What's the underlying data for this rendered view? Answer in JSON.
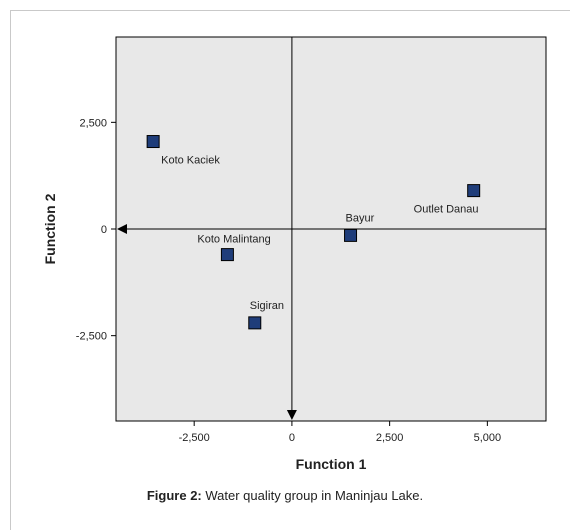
{
  "caption": {
    "label": "Figure 2:",
    "text": " Water quality group in Maninjau Lake."
  },
  "colors": {
    "plot_background": "#e8e8e8",
    "marker_fill": "#1f3d7a",
    "marker_stroke": "#000000",
    "axis": "#000000"
  },
  "chart_data": {
    "type": "scatter",
    "title": "",
    "xlabel": "Function 1",
    "ylabel": "Function 2",
    "xlim": [
      -4500,
      6500
    ],
    "ylim": [
      -4500,
      4500
    ],
    "xticks": [
      -2500,
      0,
      2500,
      5000
    ],
    "xtick_labels": [
      "-2,500",
      "0",
      "2,500",
      "5,000"
    ],
    "yticks": [
      2500,
      0,
      -2500
    ],
    "ytick_labels": [
      "2,500",
      "0",
      "-2,500"
    ],
    "grid": false,
    "legend": "none",
    "points": [
      {
        "label": "Koto Kaciek",
        "x": -3550,
        "y": 2050,
        "label_side": "below-right"
      },
      {
        "label": "Outlet Danau",
        "x": 4650,
        "y": 900,
        "label_side": "below-left"
      },
      {
        "label": "Bayur",
        "x": 1500,
        "y": -150,
        "label_side": "above"
      },
      {
        "label": "Koto Malintang",
        "x": -1650,
        "y": -600,
        "label_side": "above-left"
      },
      {
        "label": "Sigiran",
        "x": -950,
        "y": -2200,
        "label_side": "above"
      }
    ]
  }
}
